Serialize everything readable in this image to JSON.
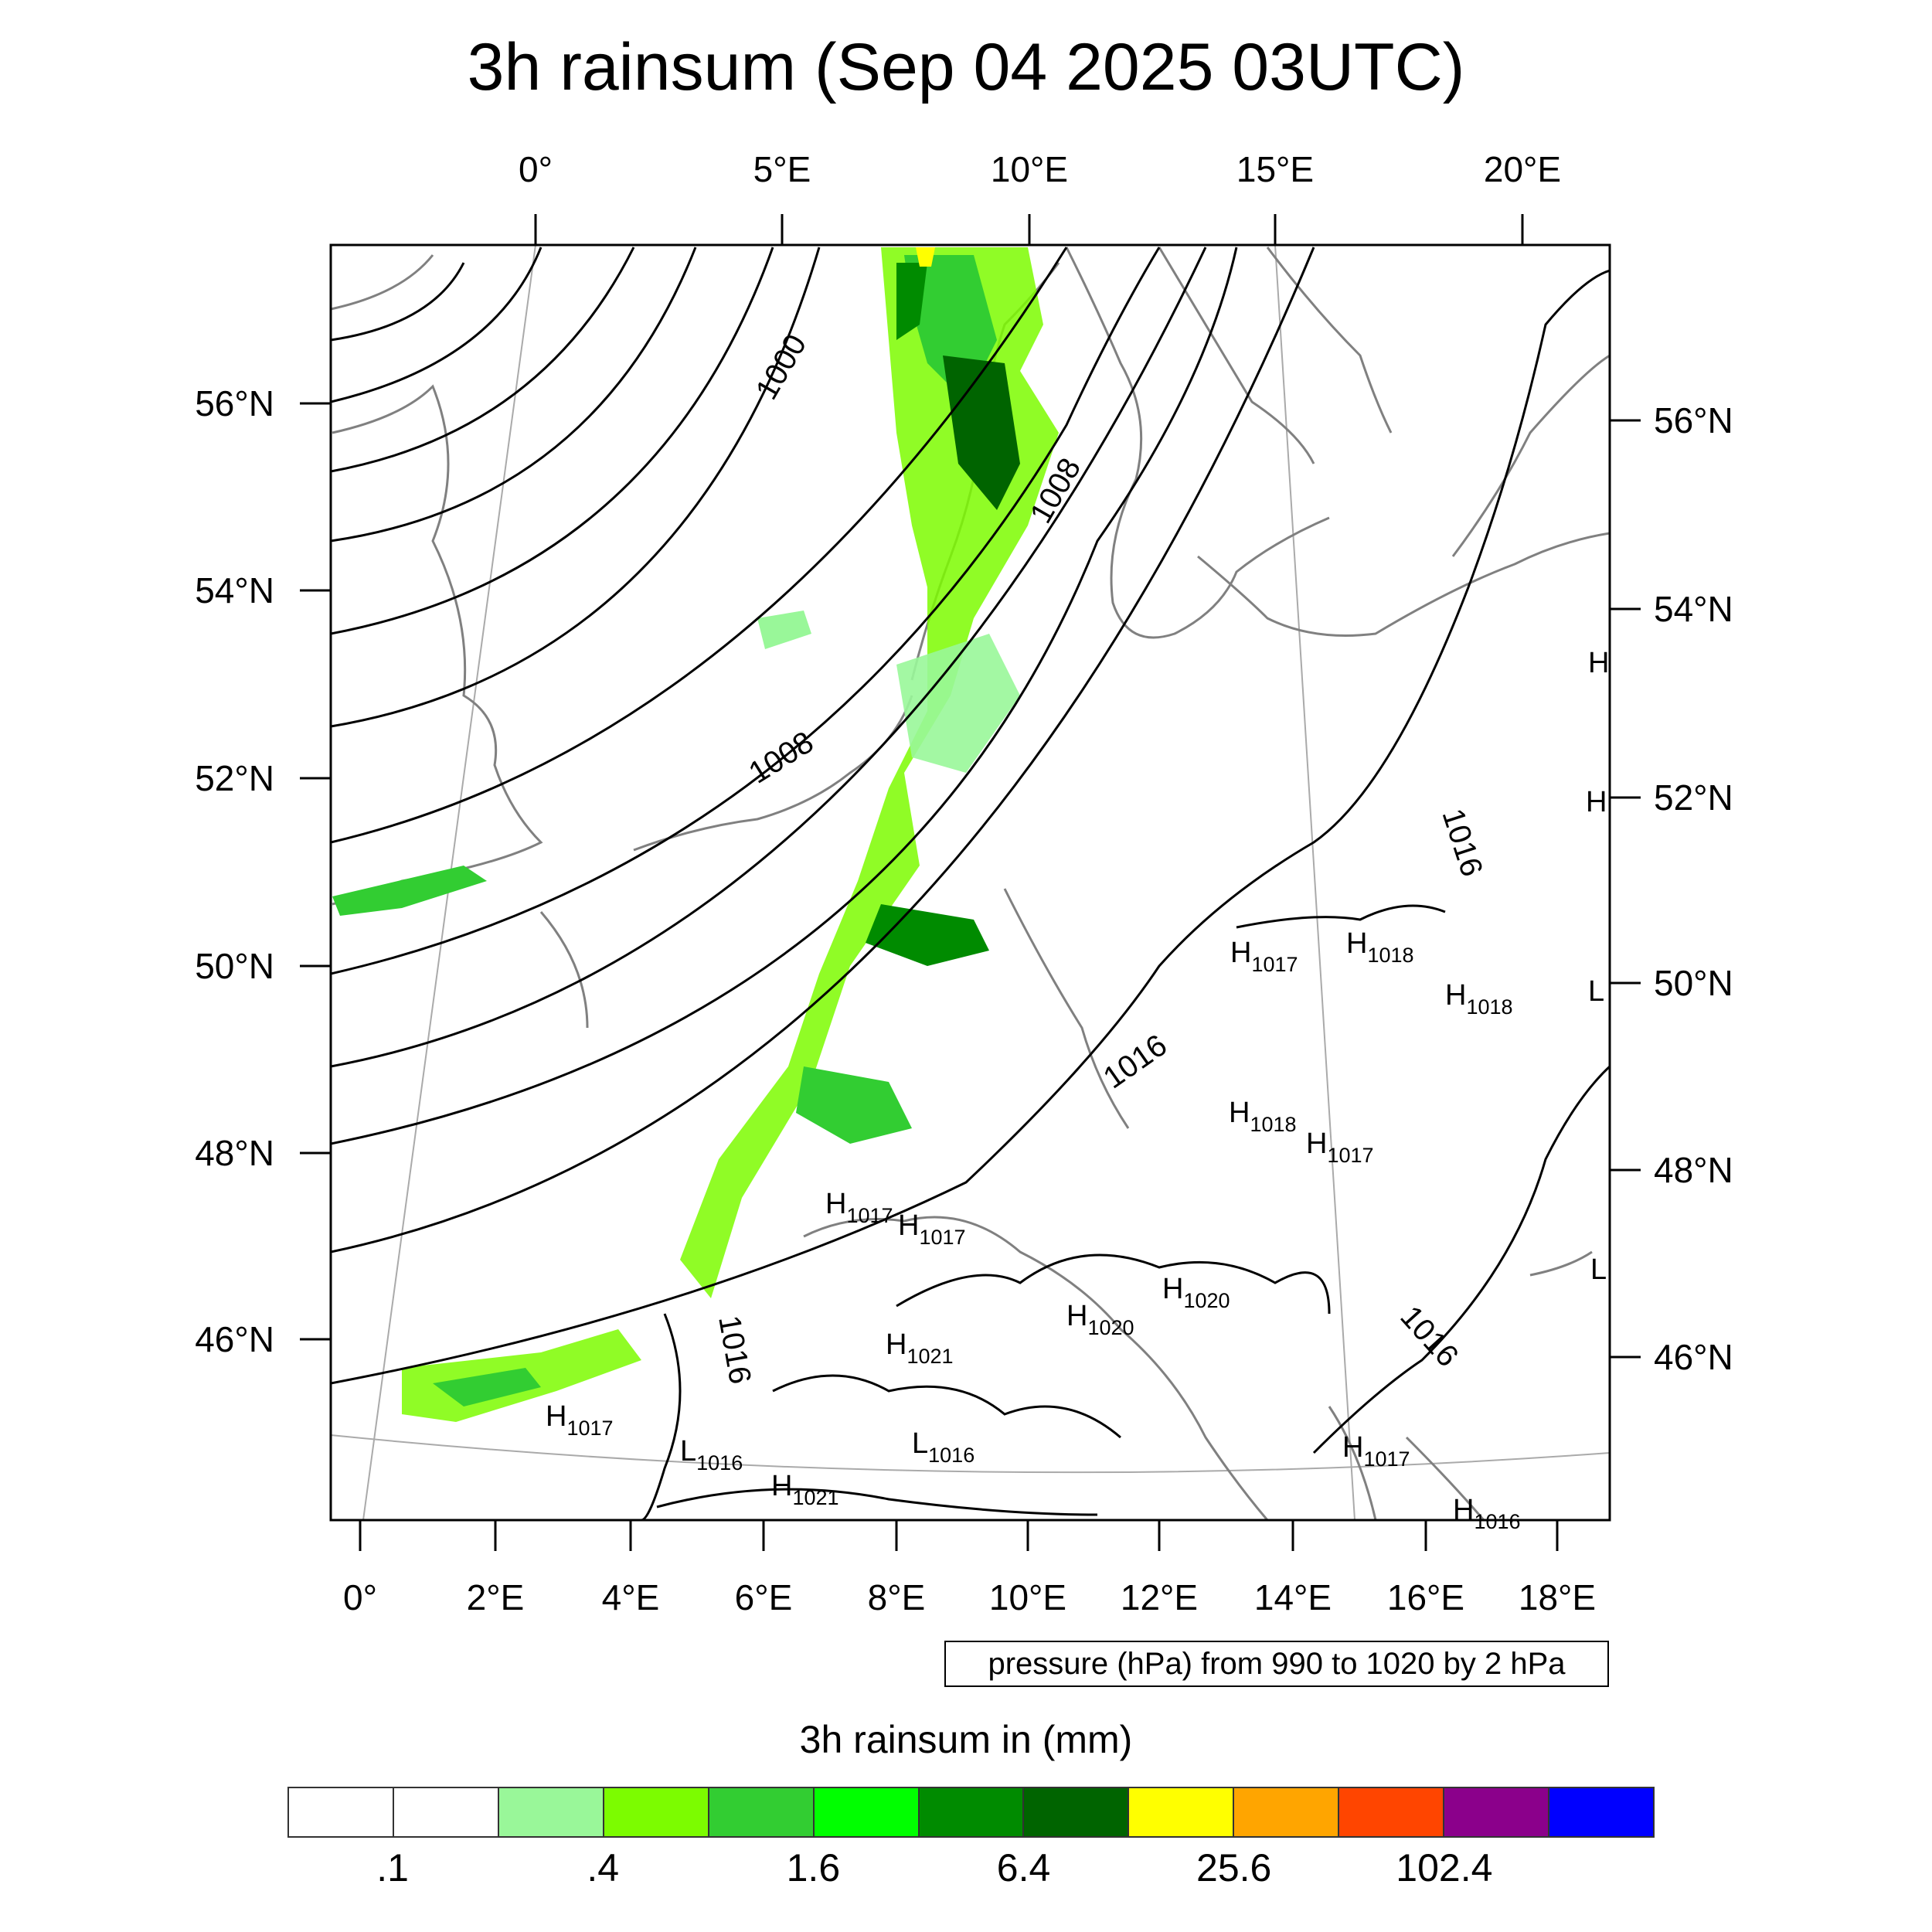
{
  "title": "3h rainsum (Sep 04 2025 03UTC)",
  "map": {
    "top_lon_labels": [
      "0°",
      "5°E",
      "10°E",
      "15°E",
      "20°E"
    ],
    "bottom_lon_labels": [
      "0°",
      "2°E",
      "4°E",
      "6°E",
      "8°E",
      "10°E",
      "12°E",
      "14°E",
      "16°E",
      "18°E"
    ],
    "left_lat_labels": [
      "56°N",
      "54°N",
      "52°N",
      "50°N",
      "48°N",
      "46°N"
    ],
    "right_lat_labels": [
      "56°N",
      "54°N",
      "52°N",
      "50°N",
      "48°N",
      "46°N"
    ],
    "contour_labels": [
      "1000",
      "1008",
      "1008",
      "1016",
      "1016",
      "1016",
      "1016"
    ],
    "pressure_centers": [
      {
        "type": "H",
        "value": "1017"
      },
      {
        "type": "H",
        "value": "1018"
      },
      {
        "type": "H",
        "value": "1018"
      },
      {
        "type": "H",
        "value": "1018"
      },
      {
        "type": "H",
        "value": "1017"
      },
      {
        "type": "H",
        "value": "1017"
      },
      {
        "type": "H",
        "value": "1017"
      },
      {
        "type": "H",
        "value": "1020"
      },
      {
        "type": "H",
        "value": "1020"
      },
      {
        "type": "H",
        "value": "1021"
      },
      {
        "type": "H",
        "value": "1017"
      },
      {
        "type": "L",
        "value": "1016"
      },
      {
        "type": "L",
        "value": "1016"
      },
      {
        "type": "H",
        "value": "1021"
      },
      {
        "type": "H",
        "value": "1017"
      },
      {
        "type": "H",
        "value": "1016"
      }
    ],
    "edge_marks": [
      "H",
      "H",
      "L",
      "L"
    ],
    "line_color": "#000000",
    "coast_color": "#808080"
  },
  "note": "pressure (hPa) from 990 to 1020 by 2 hPa",
  "colorbar": {
    "title": "3h rainsum in (mm)",
    "colors": [
      "#ffffff",
      "#ffffff",
      "#99f799",
      "#7cfc00",
      "#32cd32",
      "#00ff00",
      "#008b00",
      "#006400",
      "#ffff00",
      "#ffa500",
      "#ff4500",
      "#8b008b",
      "#0000ff"
    ],
    "labels": [
      ".1",
      ".4",
      "1.6",
      "6.4",
      "25.6",
      "102.4"
    ]
  }
}
